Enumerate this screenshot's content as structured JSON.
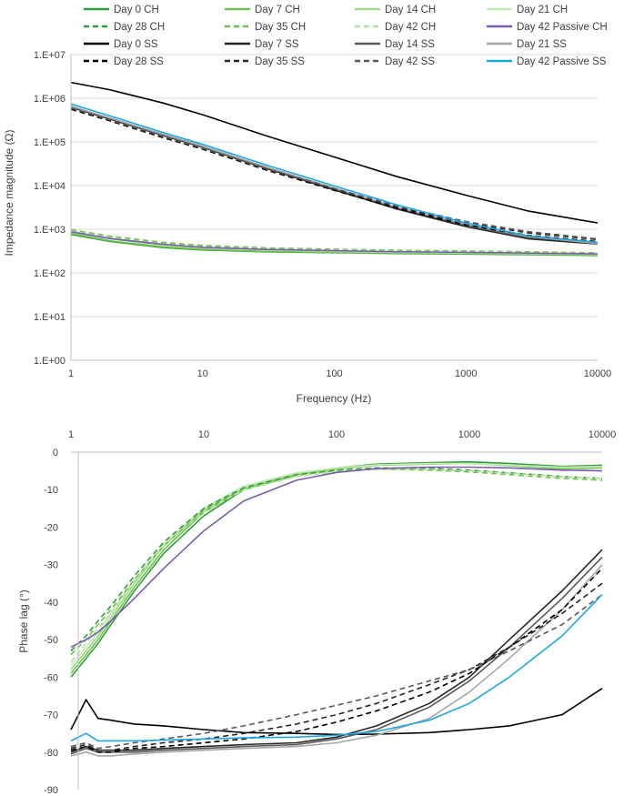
{
  "legend": [
    {
      "name": "Day 0 CH",
      "color": "#2e9e3b",
      "dash": false
    },
    {
      "name": "Day 7 CH",
      "color": "#6cc24a",
      "dash": false
    },
    {
      "name": "Day 14 CH",
      "color": "#9fd88a",
      "dash": false
    },
    {
      "name": "Day 21 CH",
      "color": "#c7e8b7",
      "dash": false
    },
    {
      "name": "Day 28 CH",
      "color": "#2e9e3b",
      "dash": true
    },
    {
      "name": "Day 35 CH",
      "color": "#6cc24a",
      "dash": true
    },
    {
      "name": "Day 42 CH",
      "color": "#b5de9f",
      "dash": true
    },
    {
      "name": "Day 42 Passive CH",
      "color": "#7a5cae",
      "dash": false
    },
    {
      "name": "Day 0 SS",
      "color": "#000000",
      "dash": false
    },
    {
      "name": "Day 7 SS",
      "color": "#262626",
      "dash": false
    },
    {
      "name": "Day 14 SS",
      "color": "#595959",
      "dash": false
    },
    {
      "name": "Day 21 SS",
      "color": "#a6a6a6",
      "dash": false
    },
    {
      "name": "Day 28 SS",
      "color": "#000000",
      "dash": true
    },
    {
      "name": "Day 35 SS",
      "color": "#262626",
      "dash": true
    },
    {
      "name": "Day 42 SS",
      "color": "#595959",
      "dash": true
    },
    {
      "name": "Day 42 Passive SS",
      "color": "#1ea7e1",
      "dash": false
    }
  ],
  "chart_data": [
    {
      "type": "line",
      "title": "",
      "xlabel": "Frequency (Hz)",
      "ylabel": "Impedance magnitude (Ω)",
      "xscale": "log",
      "yscale": "log",
      "xlim": [
        1,
        10000
      ],
      "ylim": [
        1,
        10000000
      ],
      "x_ticks": [
        "1",
        "10",
        "100",
        "1000",
        "10000"
      ],
      "y_ticks": [
        "1.E+00",
        "1.E+01",
        "1.E+02",
        "1.E+03",
        "1.E+04",
        "1.E+05",
        "1.E+06",
        "1.E+07"
      ],
      "x": [
        1,
        2,
        5,
        10,
        30,
        100,
        300,
        1000,
        3000,
        10000
      ],
      "series": [
        {
          "name": "Day 0 CH",
          "values": [
            760,
            520,
            380,
            335,
            305,
            290,
            278,
            270,
            262,
            250
          ]
        },
        {
          "name": "Day 7 CH",
          "values": [
            800,
            540,
            395,
            345,
            312,
            296,
            284,
            276,
            268,
            256
          ]
        },
        {
          "name": "Day 14 CH",
          "values": [
            870,
            600,
            430,
            370,
            330,
            310,
            295,
            285,
            276,
            265
          ]
        },
        {
          "name": "Day 21 CH",
          "values": [
            900,
            620,
            445,
            380,
            338,
            316,
            300,
            290,
            280,
            268
          ]
        },
        {
          "name": "Day 28 CH",
          "values": [
            950,
            660,
            480,
            410,
            365,
            340,
            322,
            310,
            298,
            282
          ]
        },
        {
          "name": "Day 35 CH",
          "values": [
            980,
            690,
            500,
            425,
            375,
            348,
            330,
            318,
            305,
            288
          ]
        },
        {
          "name": "Day 42 CH",
          "values": [
            920,
            640,
            465,
            395,
            352,
            328,
            312,
            300,
            290,
            276
          ]
        },
        {
          "name": "Day 42 Passive CH",
          "values": [
            880,
            610,
            450,
            385,
            345,
            322,
            306,
            295,
            285,
            272
          ]
        },
        {
          "name": "Day 0 SS",
          "values": [
            2300000,
            1550000,
            780000,
            420000,
            140000,
            45000,
            16000,
            6000,
            2600,
            1400
          ]
        },
        {
          "name": "Day 7 SS",
          "values": [
            620000,
            330000,
            140000,
            75000,
            25000,
            8000,
            2900,
            1150,
            600,
            460
          ]
        },
        {
          "name": "Day 14 SS",
          "values": [
            650000,
            345000,
            145000,
            78000,
            26000,
            8500,
            3100,
            1250,
            650,
            480
          ]
        },
        {
          "name": "Day 21 SS",
          "values": [
            660000,
            350000,
            150000,
            80000,
            27000,
            8800,
            3200,
            1300,
            680,
            470
          ]
        },
        {
          "name": "Day 28 SS",
          "values": [
            560000,
            300000,
            125000,
            68000,
            23000,
            7800,
            3000,
            1250,
            720,
            520
          ]
        },
        {
          "name": "Day 35 SS",
          "values": [
            580000,
            310000,
            130000,
            70000,
            24000,
            8200,
            3200,
            1400,
            820,
            580
          ]
        },
        {
          "name": "Day 42 SS",
          "values": [
            600000,
            320000,
            135000,
            72000,
            25000,
            8600,
            3400,
            1500,
            880,
            600
          ]
        },
        {
          "name": "Day 42 Passive SS",
          "values": [
            740000,
            390000,
            165000,
            88000,
            30000,
            9800,
            3600,
            1400,
            700,
            500
          ]
        }
      ]
    },
    {
      "type": "line",
      "title": "",
      "xlabel": "",
      "ylabel": "Phase lag (°)",
      "xscale": "log",
      "xlim": [
        1,
        10000
      ],
      "ylim": [
        -90,
        0
      ],
      "x_axis_position": "top",
      "x_ticks": [
        "1",
        "10",
        "100",
        "1000",
        "10000"
      ],
      "y_ticks": [
        "0",
        "-10",
        "-20",
        "-30",
        "-40",
        "-50",
        "-60",
        "-70",
        "-80",
        "-90"
      ],
      "x": [
        1,
        1.3,
        1.6,
        2,
        3,
        5,
        10,
        20,
        50,
        100,
        200,
        500,
        1000,
        2000,
        5000,
        10000
      ],
      "series": [
        {
          "name": "Day 0 CH",
          "values": [
            -60,
            -55,
            -51,
            -46,
            -37,
            -27,
            -17,
            -10,
            -6,
            -4.2,
            -3.2,
            -2.8,
            -2.6,
            -3,
            -3.8,
            -3.5
          ]
        },
        {
          "name": "Day 7 CH",
          "values": [
            -59,
            -54,
            -50,
            -45,
            -36,
            -26,
            -16,
            -10,
            -6,
            -4.5,
            -3.5,
            -3.2,
            -3,
            -3.6,
            -4.5,
            -4.2
          ]
        },
        {
          "name": "Day 14 CH",
          "values": [
            -58,
            -53,
            -49,
            -44,
            -35,
            -25,
            -15.5,
            -9.5,
            -5.8,
            -4.3,
            -3.4,
            -3,
            -3,
            -3.5,
            -4.2,
            -4
          ]
        },
        {
          "name": "Day 21 CH",
          "values": [
            -57,
            -52,
            -48,
            -43,
            -34,
            -24.5,
            -15,
            -9,
            -5.5,
            -4.2,
            -3.4,
            -3.1,
            -3.1,
            -3.4,
            -4,
            -3.8
          ]
        },
        {
          "name": "Day 28 CH",
          "values": [
            -53,
            -49,
            -45,
            -41,
            -33,
            -24,
            -15,
            -9.5,
            -6,
            -4.8,
            -4.2,
            -4.3,
            -4.8,
            -5.5,
            -6.5,
            -7
          ]
        },
        {
          "name": "Day 35 CH",
          "values": [
            -54,
            -50,
            -46,
            -42,
            -34,
            -25,
            -15.5,
            -10,
            -6.2,
            -5,
            -4.5,
            -4.8,
            -5.3,
            -6,
            -7,
            -7.5
          ]
        },
        {
          "name": "Day 42 CH",
          "values": [
            -56,
            -51,
            -47,
            -43,
            -34.5,
            -25,
            -16,
            -10,
            -6.5,
            -5.2,
            -4.6,
            -4.6,
            -5,
            -5.6,
            -6.6,
            -7
          ]
        },
        {
          "name": "Day 42 Passive CH",
          "values": [
            -52,
            -50,
            -48,
            -45,
            -39,
            -31,
            -21,
            -13,
            -7.5,
            -5.4,
            -4.4,
            -4,
            -4,
            -4.2,
            -4.8,
            -5
          ]
        },
        {
          "name": "Day 0 SS",
          "values": [
            -74,
            -66,
            -71,
            -71.5,
            -72.5,
            -73,
            -74,
            -74.8,
            -75,
            -75.3,
            -75.2,
            -74.8,
            -74,
            -73,
            -70,
            -63
          ]
        },
        {
          "name": "Day 7 SS",
          "values": [
            -80,
            -78.5,
            -79.5,
            -79.5,
            -79.5,
            -79,
            -78.5,
            -78,
            -77.5,
            -76,
            -73,
            -67,
            -60,
            -50,
            -37,
            -26
          ]
        },
        {
          "name": "Day 14 SS",
          "values": [
            -80.5,
            -79,
            -80,
            -80,
            -80,
            -79.5,
            -79,
            -78.5,
            -78,
            -76.5,
            -74,
            -68,
            -61,
            -52,
            -39,
            -28
          ]
        },
        {
          "name": "Day 21 SS",
          "values": [
            -81,
            -80,
            -81,
            -81,
            -80.5,
            -80,
            -79.5,
            -79,
            -78.5,
            -77.5,
            -75.5,
            -71,
            -64,
            -55,
            -42,
            -30
          ]
        },
        {
          "name": "Day 28 SS",
          "values": [
            -79.5,
            -78.5,
            -80,
            -80,
            -79,
            -78.5,
            -77.5,
            -76.5,
            -74.5,
            -72,
            -69,
            -64,
            -59,
            -52,
            -42,
            -31
          ]
        },
        {
          "name": "Day 35 SS",
          "values": [
            -79,
            -78,
            -79.5,
            -79.5,
            -78.5,
            -77.5,
            -76.5,
            -75,
            -72.5,
            -70,
            -67,
            -62,
            -58,
            -52,
            -43,
            -35
          ]
        },
        {
          "name": "Day 42 SS",
          "values": [
            -78.5,
            -77.5,
            -79,
            -78.5,
            -77.5,
            -76.5,
            -75,
            -73,
            -70,
            -67.5,
            -65,
            -61,
            -58,
            -53,
            -46,
            -38
          ]
        },
        {
          "name": "Day 42 Passive SS",
          "values": [
            -77,
            -75,
            -77,
            -77,
            -77,
            -76.8,
            -76.5,
            -76.2,
            -76,
            -75.5,
            -74.5,
            -71.5,
            -67,
            -60,
            -49,
            -38
          ]
        }
      ]
    }
  ]
}
